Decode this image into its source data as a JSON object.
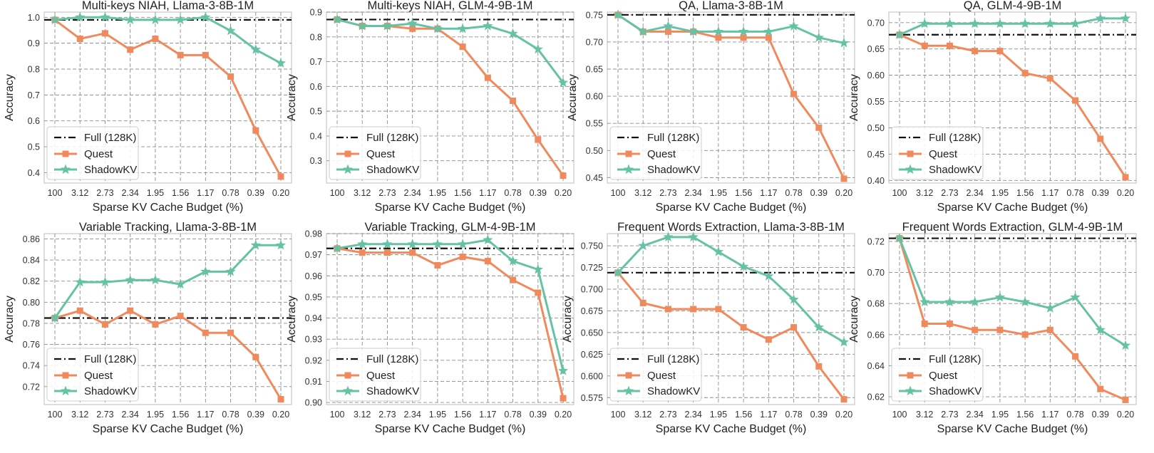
{
  "figure": {
    "x_tick_labels": [
      "100",
      "3.12",
      "2.73",
      "2.34",
      "1.95",
      "1.56",
      "1.17",
      "0.78",
      "0.39",
      "0.20"
    ],
    "legend": [
      "Full (128K)",
      "Quest",
      "ShadowKV"
    ],
    "colors": {
      "full": "#111111",
      "quest": "#f08a5d",
      "shadowkv": "#66c2a5",
      "grid": "#8c8c8c",
      "frame": "#c8c8c8"
    },
    "markers": {
      "quest": "square",
      "shadowkv": "star",
      "full": "dash-dot line"
    }
  },
  "chart_data": [
    {
      "type": "line",
      "title": "Multi-keys NIAH, Llama-3-8B-1M",
      "xlabel": "Sparse KV Cache Budget (%)",
      "ylabel": "Accuracy",
      "categories": [
        "100",
        "3.12",
        "2.73",
        "2.34",
        "1.95",
        "1.56",
        "1.17",
        "0.78",
        "0.39",
        "0.20"
      ],
      "ylim": [
        0.36,
        1.02
      ],
      "yticks": [
        0.4,
        0.5,
        0.6,
        0.7,
        0.8,
        0.9,
        1.0
      ],
      "ytick_labels": [
        "0.4",
        "0.5",
        "0.6",
        "0.7",
        "0.8",
        "0.9",
        "1.0"
      ],
      "full": 0.99,
      "series": [
        {
          "name": "Quest",
          "values": [
            0.99,
            0.917,
            0.938,
            0.875,
            0.917,
            0.854,
            0.854,
            0.771,
            0.563,
            0.385
          ]
        },
        {
          "name": "ShadowKV",
          "values": [
            0.99,
            1.0,
            1.0,
            0.99,
            0.99,
            0.99,
            1.0,
            0.948,
            0.875,
            0.823
          ]
        }
      ],
      "legend_position": "lower left",
      "grid": true
    },
    {
      "type": "line",
      "title": "Multi-keys NIAH, GLM-4-9B-1M",
      "xlabel": "Sparse KV Cache Budget (%)",
      "ylabel": "Accuracy",
      "categories": [
        "100",
        "3.12",
        "2.73",
        "2.34",
        "1.95",
        "1.56",
        "1.17",
        "0.78",
        "0.39",
        "0.20"
      ],
      "ylim": [
        0.21,
        0.9
      ],
      "yticks": [
        0.3,
        0.4,
        0.5,
        0.6,
        0.7,
        0.8,
        0.9
      ],
      "ytick_labels": [
        "0.3",
        "0.4",
        "0.5",
        "0.6",
        "0.7",
        "0.8",
        "0.9"
      ],
      "full": 0.87,
      "series": [
        {
          "name": "Quest",
          "values": [
            0.87,
            0.844,
            0.844,
            0.833,
            0.833,
            0.76,
            0.635,
            0.542,
            0.385,
            0.24
          ]
        },
        {
          "name": "ShadowKV",
          "values": [
            0.87,
            0.844,
            0.844,
            0.854,
            0.833,
            0.833,
            0.844,
            0.813,
            0.75,
            0.615
          ]
        }
      ],
      "legend_position": "lower left",
      "grid": true
    },
    {
      "type": "line",
      "title": "QA, Llama-3-8B-1M",
      "xlabel": "Sparse KV Cache Budget (%)",
      "ylabel": "Accuracy",
      "categories": [
        "100",
        "3.12",
        "2.73",
        "2.34",
        "1.95",
        "1.56",
        "1.17",
        "0.78",
        "0.39",
        "0.20"
      ],
      "ylim": [
        0.44,
        0.755
      ],
      "yticks": [
        0.45,
        0.5,
        0.55,
        0.6,
        0.65,
        0.7,
        0.75
      ],
      "ytick_labels": [
        "0.45",
        "0.50",
        "0.55",
        "0.60",
        "0.65",
        "0.70",
        "0.75"
      ],
      "full": 0.75,
      "series": [
        {
          "name": "Quest",
          "values": [
            0.75,
            0.719,
            0.719,
            0.719,
            0.708,
            0.708,
            0.708,
            0.604,
            0.542,
            0.448
          ]
        },
        {
          "name": "ShadowKV",
          "values": [
            0.75,
            0.719,
            0.729,
            0.719,
            0.719,
            0.719,
            0.719,
            0.729,
            0.708,
            0.698
          ]
        }
      ],
      "legend_position": "lower left",
      "grid": true
    },
    {
      "type": "line",
      "title": "QA, GLM-4-9B-1M",
      "xlabel": "Sparse KV Cache Budget (%)",
      "ylabel": "Accuracy",
      "categories": [
        "100",
        "3.12",
        "2.73",
        "2.34",
        "1.95",
        "1.56",
        "1.17",
        "0.78",
        "0.39",
        "0.20"
      ],
      "ylim": [
        0.395,
        0.72
      ],
      "yticks": [
        0.4,
        0.45,
        0.5,
        0.55,
        0.6,
        0.65,
        0.7
      ],
      "ytick_labels": [
        "0.40",
        "0.45",
        "0.50",
        "0.55",
        "0.60",
        "0.65",
        "0.70"
      ],
      "full": 0.677,
      "series": [
        {
          "name": "Quest",
          "values": [
            0.677,
            0.656,
            0.656,
            0.646,
            0.646,
            0.604,
            0.594,
            0.552,
            0.479,
            0.406
          ]
        },
        {
          "name": "ShadowKV",
          "values": [
            0.677,
            0.698,
            0.698,
            0.698,
            0.698,
            0.698,
            0.698,
            0.698,
            0.708,
            0.708
          ]
        }
      ],
      "legend_position": "lower left",
      "grid": true
    },
    {
      "type": "line",
      "title": "Variable Tracking, Llama-3-8B-1M",
      "xlabel": "Sparse KV Cache Budget (%)",
      "ylabel": "Accuracy",
      "categories": [
        "100",
        "3.12",
        "2.73",
        "2.34",
        "1.95",
        "1.56",
        "1.17",
        "0.78",
        "0.39",
        "0.20"
      ],
      "ylim": [
        0.703,
        0.865
      ],
      "yticks": [
        0.72,
        0.74,
        0.76,
        0.78,
        0.8,
        0.82,
        0.84,
        0.86
      ],
      "ytick_labels": [
        "0.72",
        "0.74",
        "0.76",
        "0.78",
        "0.80",
        "0.82",
        "0.84",
        "0.86"
      ],
      "full": 0.785,
      "series": [
        {
          "name": "Quest",
          "values": [
            0.785,
            0.792,
            0.779,
            0.792,
            0.779,
            0.787,
            0.771,
            0.771,
            0.748,
            0.708
          ]
        },
        {
          "name": "ShadowKV",
          "values": [
            0.785,
            0.819,
            0.819,
            0.821,
            0.821,
            0.817,
            0.829,
            0.829,
            0.854,
            0.854
          ]
        }
      ],
      "legend_position": "lower left",
      "grid": true
    },
    {
      "type": "line",
      "title": "Variable Tracking, GLM-4-9B-1M",
      "xlabel": "Sparse KV Cache Budget (%)",
      "ylabel": "Accuracy",
      "categories": [
        "100",
        "3.12",
        "2.73",
        "2.34",
        "1.95",
        "1.56",
        "1.17",
        "0.78",
        "0.39",
        "0.20"
      ],
      "ylim": [
        0.899,
        0.98
      ],
      "yticks": [
        0.9,
        0.91,
        0.92,
        0.93,
        0.94,
        0.95,
        0.96,
        0.97,
        0.98
      ],
      "ytick_labels": [
        "0.90",
        "0.91",
        "0.92",
        "0.93",
        "0.94",
        "0.95",
        "0.96",
        "0.97",
        "0.98"
      ],
      "full": 0.973,
      "series": [
        {
          "name": "Quest",
          "values": [
            0.973,
            0.971,
            0.971,
            0.971,
            0.965,
            0.969,
            0.967,
            0.958,
            0.952,
            0.902
          ]
        },
        {
          "name": "ShadowKV",
          "values": [
            0.973,
            0.975,
            0.975,
            0.975,
            0.975,
            0.975,
            0.977,
            0.967,
            0.963,
            0.915
          ]
        }
      ],
      "legend_position": "lower left",
      "grid": true
    },
    {
      "type": "line",
      "title": "Frequent Words Extraction, Llama-3-8B-1M",
      "xlabel": "Sparse KV Cache Budget (%)",
      "ylabel": "Accuracy",
      "categories": [
        "100",
        "3.12",
        "2.73",
        "2.34",
        "1.95",
        "1.56",
        "1.17",
        "0.78",
        "0.39",
        "0.20"
      ],
      "ylim": [
        0.567,
        0.764
      ],
      "yticks": [
        0.575,
        0.6,
        0.625,
        0.65,
        0.675,
        0.7,
        0.725,
        0.75
      ],
      "ytick_labels": [
        "0.575",
        "0.600",
        "0.625",
        "0.650",
        "0.675",
        "0.700",
        "0.725",
        "0.750"
      ],
      "full": 0.719,
      "series": [
        {
          "name": "Quest",
          "values": [
            0.719,
            0.684,
            0.677,
            0.677,
            0.677,
            0.656,
            0.642,
            0.656,
            0.611,
            0.573
          ]
        },
        {
          "name": "ShadowKV",
          "values": [
            0.719,
            0.75,
            0.76,
            0.76,
            0.743,
            0.726,
            0.715,
            0.688,
            0.656,
            0.639
          ]
        }
      ],
      "legend_position": "lower left",
      "grid": true
    },
    {
      "type": "line",
      "title": "Frequent Words Extraction, GLM-4-9B-1M",
      "xlabel": "Sparse KV Cache Budget (%)",
      "ylabel": "Accuracy",
      "categories": [
        "100",
        "3.12",
        "2.73",
        "2.34",
        "1.95",
        "1.56",
        "1.17",
        "0.78",
        "0.39",
        "0.20"
      ],
      "ylim": [
        0.615,
        0.725
      ],
      "yticks": [
        0.62,
        0.64,
        0.66,
        0.68,
        0.7,
        0.72
      ],
      "ytick_labels": [
        "0.62",
        "0.64",
        "0.66",
        "0.68",
        "0.70",
        "0.72"
      ],
      "full": 0.722,
      "series": [
        {
          "name": "Quest",
          "values": [
            0.722,
            0.667,
            0.667,
            0.663,
            0.663,
            0.66,
            0.663,
            0.646,
            0.625,
            0.618
          ]
        },
        {
          "name": "ShadowKV",
          "values": [
            0.722,
            0.681,
            0.681,
            0.681,
            0.684,
            0.681,
            0.677,
            0.684,
            0.663,
            0.653
          ]
        }
      ],
      "legend_position": "lower left",
      "grid": true
    }
  ]
}
